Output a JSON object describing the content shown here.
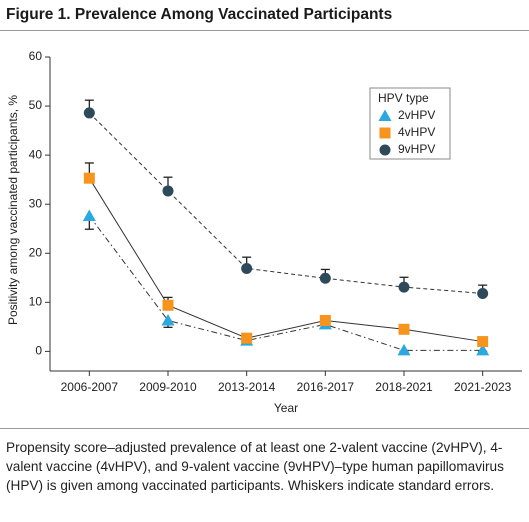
{
  "chart_data": {
    "type": "line",
    "title": "Figure 1. Prevalence Among Vaccinated Participants",
    "caption": "Propensity score–adjusted prevalence of at least one 2-valent vaccine (2vHPV), 4-valent vaccine (4vHPV), and 9-valent vaccine (9vHPV)–type human papillomavirus (HPV) is given among vaccinated participants. Whiskers indicate standard errors.",
    "x_label": "Year",
    "y_label": "Positivity among vaccinated participants, %",
    "legend_title": "HPV type",
    "legend_position": "upper right",
    "categories": [
      "2006-2007",
      "2009-2010",
      "2013-2014",
      "2016-2017",
      "2018-2021",
      "2021-2023"
    ],
    "ylim": [
      -4,
      60
    ],
    "yticks": [
      0,
      10,
      20,
      30,
      40,
      50,
      60
    ],
    "series": [
      {
        "name": "2vHPV",
        "color": "#29a9e0",
        "marker": "triangle",
        "line_style": "dashdot",
        "error_direction": "down",
        "values": [
          27.6,
          6.3,
          2.2,
          5.5,
          0.2,
          0.2
        ],
        "errors": [
          2.7,
          1.4,
          0.3,
          0.8,
          0.2,
          0.2
        ]
      },
      {
        "name": "4vHPV",
        "color": "#f7941d",
        "marker": "square",
        "line_style": "solid",
        "error_direction": "up",
        "values": [
          35.3,
          9.4,
          2.7,
          6.3,
          4.5,
          2.0
        ],
        "errors": [
          3.1,
          1.6,
          0.3,
          0.8,
          0.8,
          0.3
        ]
      },
      {
        "name": "9vHPV",
        "color": "#2e4a5a",
        "marker": "circle",
        "line_style": "dashed",
        "error_direction": "up",
        "values": [
          48.6,
          32.7,
          16.9,
          14.9,
          13.1,
          11.8
        ],
        "errors": [
          2.6,
          2.8,
          2.3,
          1.8,
          2.0,
          1.7
        ]
      }
    ]
  }
}
